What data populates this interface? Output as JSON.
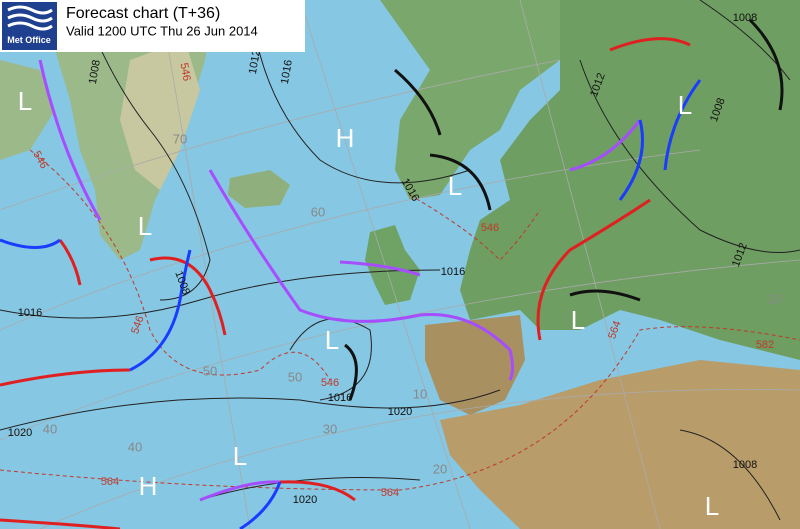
{
  "header": {
    "logo": "Met Office",
    "title": "Forecast chart (T+36)",
    "valid": "Valid 1200 UTC Thu 26 Jun 2014"
  },
  "pressure_centres": [
    "L",
    "L",
    "H",
    "L",
    "L",
    "L",
    "L",
    "L",
    "H",
    "L"
  ],
  "isobar_labels": [
    1008,
    1008,
    1012,
    1016,
    1012,
    1008,
    1016,
    1008,
    1016,
    1016,
    1016,
    1020,
    1020,
    1012,
    1020,
    1008
  ],
  "thickness_labels": [
    546,
    546,
    546,
    546,
    546,
    564,
    564,
    564,
    582
  ],
  "grid_labels": [
    70,
    60,
    50,
    40,
    30,
    20,
    40,
    50,
    10,
    20
  ]
}
